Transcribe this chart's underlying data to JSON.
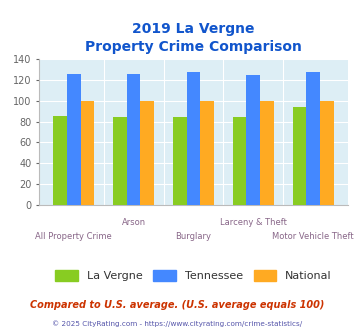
{
  "title_line1": "2019 La Vergne",
  "title_line2": "Property Crime Comparison",
  "categories": [
    "All Property Crime",
    "Arson",
    "Burglary",
    "Larceny & Theft",
    "Motor Vehicle Theft"
  ],
  "lavergne": [
    85,
    84,
    84,
    84,
    94
  ],
  "tennessee": [
    126,
    126,
    128,
    125,
    128
  ],
  "national": [
    100,
    100,
    100,
    100,
    100
  ],
  "lavergne_color": "#88cc22",
  "tennessee_color": "#4488ff",
  "national_color": "#ffaa22",
  "ylim": [
    0,
    140
  ],
  "yticks": [
    0,
    20,
    40,
    60,
    80,
    100,
    120,
    140
  ],
  "plot_bg": "#ddeef5",
  "fig_bg": "#ffffff",
  "title_color": "#1155cc",
  "xlabel_color": "#886688",
  "ylabel_color": "#666666",
  "footer_text": "Compared to U.S. average. (U.S. average equals 100)",
  "copyright_text": "© 2025 CityRating.com - https://www.cityrating.com/crime-statistics/",
  "footer_color": "#cc3300",
  "copyright_color": "#5555aa",
  "legend_labels": [
    "La Vergne",
    "Tennessee",
    "National"
  ],
  "bar_width": 0.23
}
